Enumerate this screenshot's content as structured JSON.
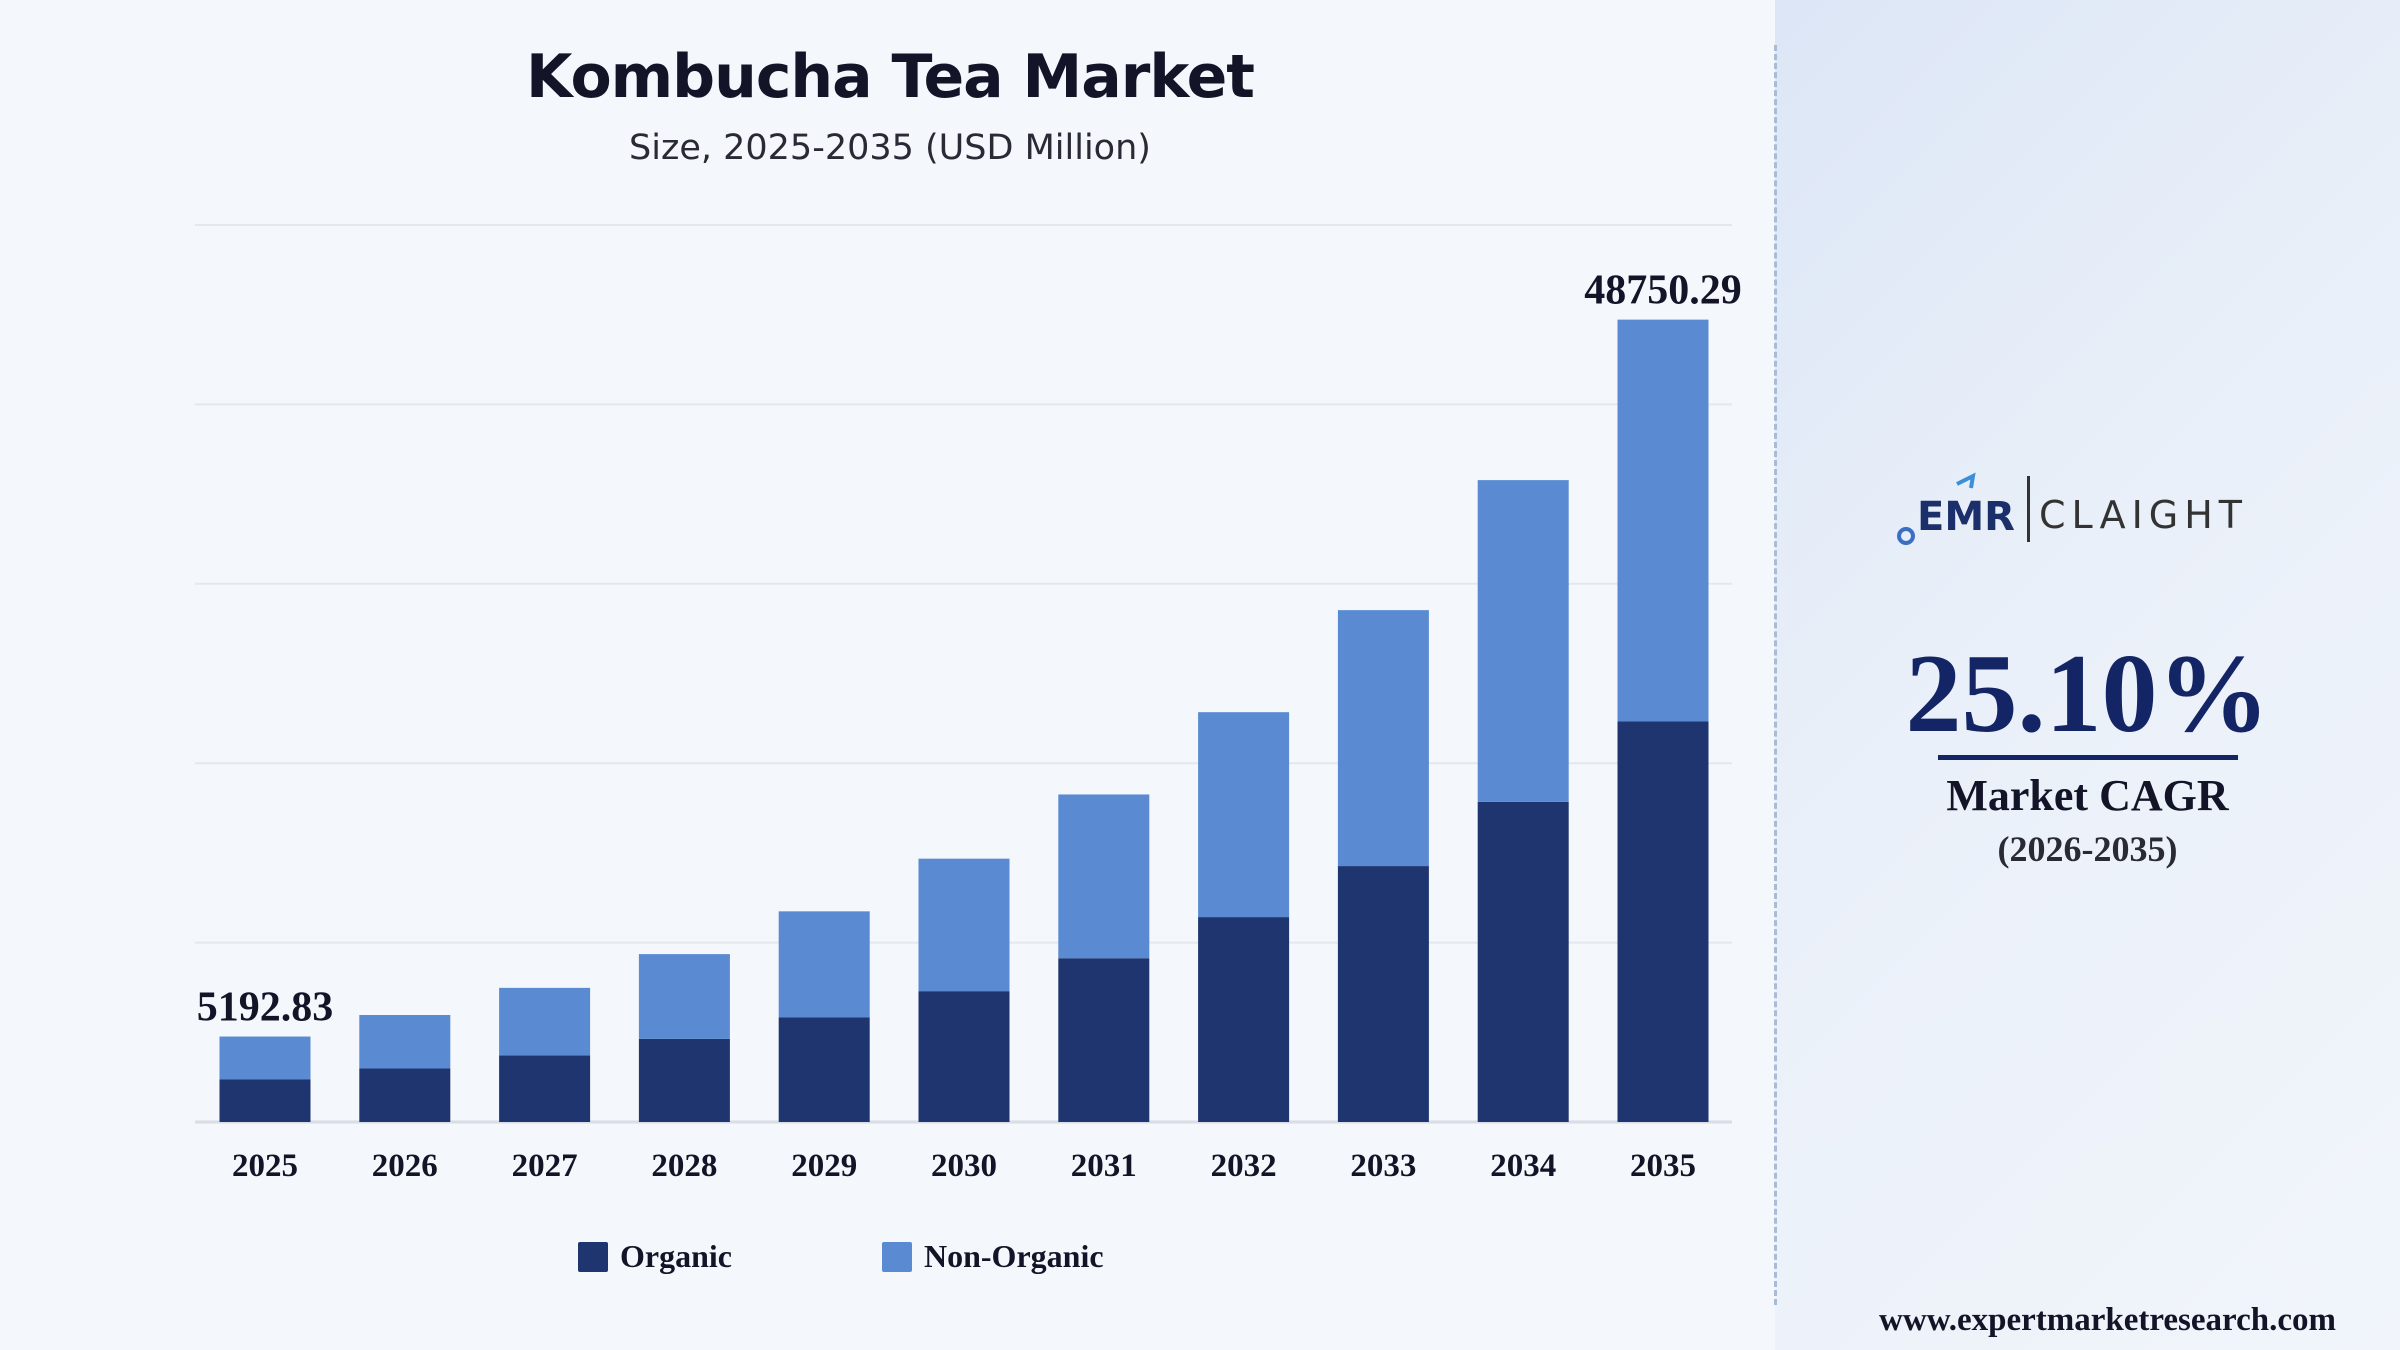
{
  "chart_data": {
    "type": "bar",
    "stacked": true,
    "title": "Kombucha Tea Market",
    "subtitle": "Size, 2025-2035 (USD Million)",
    "categories": [
      "2025",
      "2026",
      "2027",
      "2028",
      "2029",
      "2030",
      "2031",
      "2032",
      "2033",
      "2034",
      "2035"
    ],
    "series": [
      {
        "name": "Organic",
        "color": "#1e356f",
        "values": [
          2600,
          3250,
          4050,
          5050,
          6350,
          7950,
          9950,
          12450,
          15550,
          19450,
          24350
        ]
      },
      {
        "name": "Non-Organic",
        "color": "#5a8bd2",
        "values": [
          2592.83,
          3250,
          4100,
          5150,
          6450,
          8050,
          9950,
          12450,
          15550,
          19550,
          24400.29
        ]
      }
    ],
    "data_labels": [
      {
        "category": "2025",
        "text": "5192.83"
      },
      {
        "category": "2035",
        "text": "48750.29"
      }
    ],
    "ylim": [
      0,
      54500
    ],
    "grid": true,
    "legend_position": "bottom"
  },
  "sidebar": {
    "logo_left": "EMR",
    "logo_right": "CLAIGHT",
    "cagr_value": "25.10%",
    "cagr_label": "Market CAGR",
    "cagr_period": "(2026-2035)",
    "website": "www.expertmarketresearch.com"
  }
}
